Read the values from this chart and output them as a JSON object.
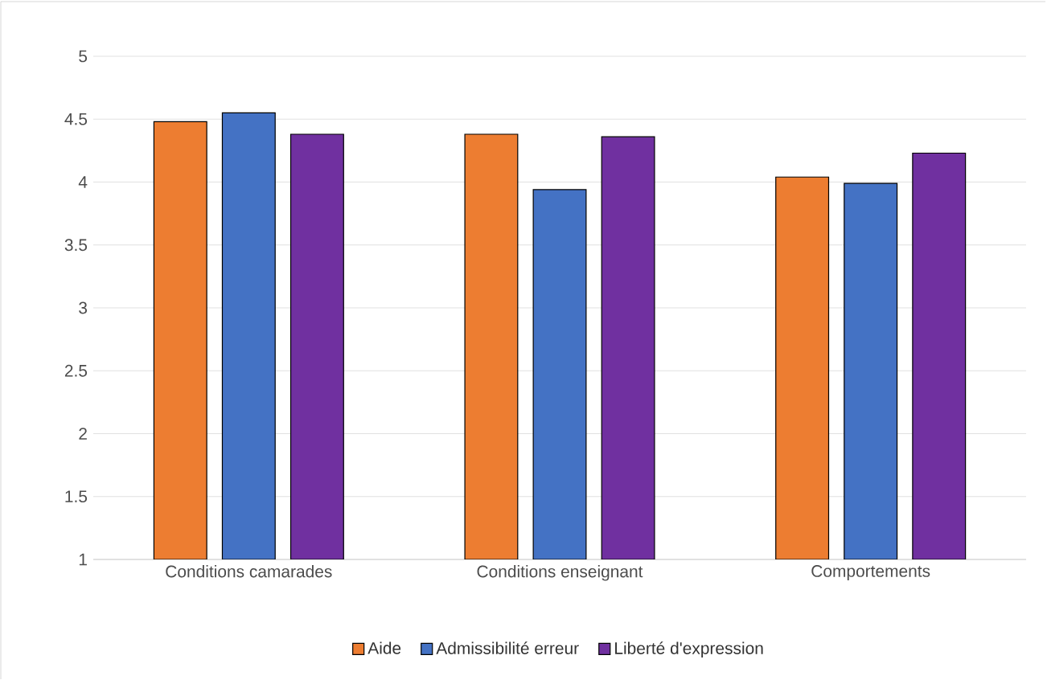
{
  "chart_data": {
    "type": "bar",
    "categories": [
      "Conditions camarades",
      "Conditions enseignant",
      "Comportements"
    ],
    "series": [
      {
        "name": "Aide",
        "color": "#ed7d31",
        "values": [
          4.48,
          4.38,
          4.04
        ]
      },
      {
        "name": "Admissibilité erreur",
        "color": "#4472c4",
        "values": [
          4.55,
          3.94,
          3.99
        ]
      },
      {
        "name": "Liberté d'expression",
        "color": "#7030a0",
        "values": [
          4.38,
          4.36,
          4.23
        ]
      }
    ],
    "ylim": [
      1,
      5
    ],
    "yticks": [
      1,
      1.5,
      2,
      2.5,
      3,
      3.5,
      4,
      4.5,
      5
    ],
    "grid": "y",
    "legend": "bottom"
  }
}
